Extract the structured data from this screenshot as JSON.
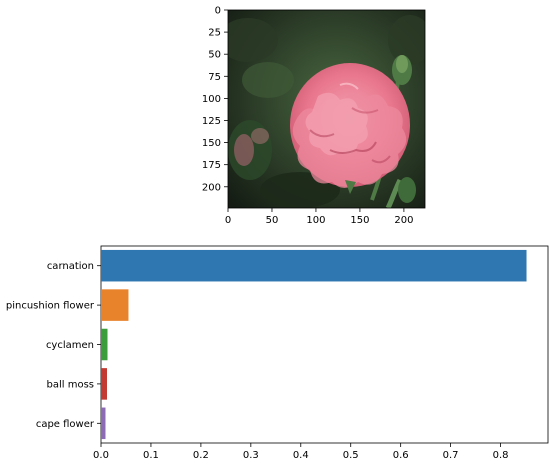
{
  "chart_data": [
    {
      "type": "image",
      "subject": "pink carnation flower on dark green blurred background",
      "x_ticks": [
        0,
        50,
        100,
        150,
        200
      ],
      "y_ticks": [
        0,
        25,
        50,
        75,
        100,
        125,
        150,
        175,
        200
      ],
      "xlim": [
        0,
        224
      ],
      "ylim": [
        224,
        0
      ],
      "colors": {
        "background_dark": "#1e2a1c",
        "background_green": "#3f5a36",
        "petal_main": "#e9778d",
        "petal_light": "#f6a8b6",
        "petal_shadow": "#b94a62",
        "stem": "#4f7a45"
      }
    },
    {
      "type": "bar",
      "orientation": "horizontal",
      "categories": [
        "carnation",
        "pincushion flower",
        "cyclamen",
        "ball moss",
        "cape flower"
      ],
      "values": [
        0.852,
        0.055,
        0.013,
        0.012,
        0.009
      ],
      "colors": [
        "#2f77b0",
        "#e8822b",
        "#3b9d3b",
        "#c23a32",
        "#8e6bb5"
      ],
      "x_ticks": [
        "0.0",
        "0.1",
        "0.2",
        "0.3",
        "0.4",
        "0.5",
        "0.6",
        "0.7",
        "0.8"
      ],
      "xlim": [
        0,
        0.895
      ],
      "title": "",
      "xlabel": "",
      "ylabel": ""
    }
  ]
}
